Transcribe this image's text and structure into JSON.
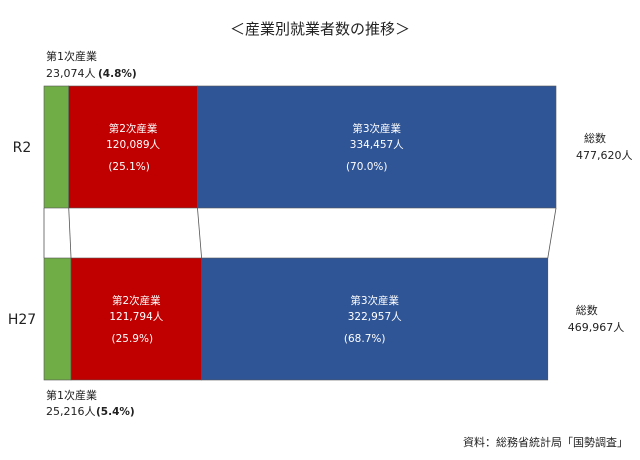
{
  "chart_data": {
    "type": "bar",
    "title": "＜産業別就業者数の推移＞",
    "stacked": true,
    "orientation": "horizontal",
    "categories": [
      "R2",
      "H27"
    ],
    "series": [
      {
        "name": "第1次産業",
        "values": [
          23074,
          25216
        ],
        "percent_labels": [
          "(4.8%)",
          "(5.4%)"
        ],
        "value_labels": [
          "23,074人",
          "25,216人"
        ],
        "color": "#70ad47"
      },
      {
        "name": "第2次産業",
        "values": [
          120089,
          121794
        ],
        "percent_labels": [
          "(25.1%)",
          "(25.9%)"
        ],
        "value_labels": [
          "120,089人",
          "121,794人"
        ],
        "color": "#c00000"
      },
      {
        "name": "第3次産業",
        "values": [
          334457,
          322957
        ],
        "percent_labels": [
          "(70.0%)",
          "(68.7%)"
        ],
        "value_labels": [
          "334,457人",
          "322,957人"
        ],
        "color": "#2f5597"
      }
    ],
    "totals": {
      "label": "総数",
      "values": [
        477620,
        469967
      ],
      "value_labels": [
        "477,620人",
        "469,967人"
      ]
    },
    "source": "資料：総務省統計局「国勢調査」",
    "grid": false,
    "legend": "none"
  }
}
